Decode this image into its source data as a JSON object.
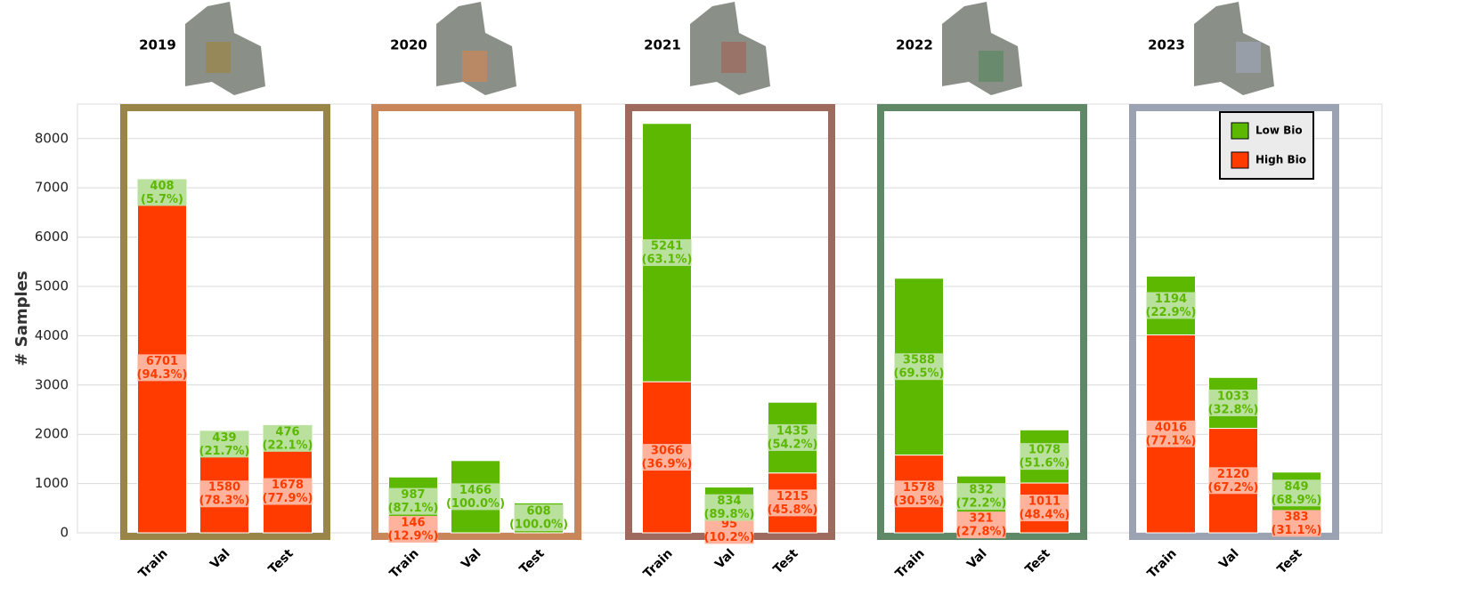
{
  "chart_data": {
    "type": "bar",
    "stacked": true,
    "ylabel": "# Samples",
    "ylim": [
      0,
      8700
    ],
    "yticks": [
      0,
      1000,
      2000,
      3000,
      4000,
      5000,
      6000,
      7000,
      8000
    ],
    "grid": true,
    "legend": "upper right",
    "groups": [
      "2019",
      "2020",
      "2021",
      "2022",
      "2023"
    ],
    "group_colors": [
      "#9a8548",
      "#c8865a",
      "#9e6a5e",
      "#5f8866",
      "#9ba3b3"
    ],
    "categories": [
      "Train",
      "Val",
      "Test"
    ],
    "series": [
      {
        "name": "High Bio",
        "color": "#ff3b00",
        "label_background": "#ffb39c",
        "values": [
          [
            6701,
            1580,
            1678
          ],
          [
            146,
            0,
            0
          ],
          [
            3066,
            95,
            1215
          ],
          [
            1578,
            321,
            1011
          ],
          [
            4016,
            2120,
            383
          ]
        ],
        "percent_labels": [
          [
            "(94.3%)",
            "(78.3%)",
            "(77.9%)"
          ],
          [
            "(12.9%)",
            null,
            null
          ],
          [
            "(36.9%)",
            "(10.2%)",
            "(45.8%)"
          ],
          [
            "(30.5%)",
            "(27.8%)",
            "(48.4%)"
          ],
          [
            "(77.1%)",
            "(67.2%)",
            "(31.1%)"
          ]
        ]
      },
      {
        "name": "Low Bio",
        "color": "#5cb800",
        "label_background": "#b9e09c",
        "values": [
          [
            408,
            439,
            476
          ],
          [
            987,
            1466,
            608
          ],
          [
            5241,
            834,
            1435
          ],
          [
            3588,
            832,
            1078
          ],
          [
            1194,
            1033,
            849
          ]
        ],
        "percent_labels": [
          [
            "(5.7%)",
            "(21.7%)",
            "(22.1%)"
          ],
          [
            "(87.1%)",
            "(100.0%)",
            "(100.0%)"
          ],
          [
            "(63.1%)",
            "(89.8%)",
            "(54.2%)"
          ],
          [
            "(69.5%)",
            "(72.2%)",
            "(51.6%)"
          ],
          [
            "(22.9%)",
            "(32.8%)",
            "(68.9%)"
          ]
        ]
      }
    ]
  }
}
